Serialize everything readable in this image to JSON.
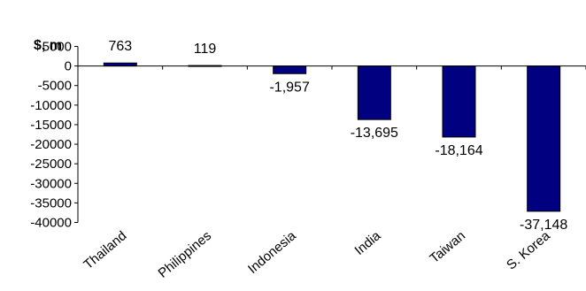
{
  "chart_data": {
    "type": "bar",
    "unit_label": "$, m",
    "categories": [
      "Thailand",
      "Philippines",
      "Indonesia",
      "India",
      "Taiwan",
      "S. Korea"
    ],
    "values": [
      763,
      119,
      -1957,
      -13695,
      -18164,
      -37148
    ],
    "data_labels": [
      "763",
      "119",
      "-1,957",
      "-13,695",
      "-18,164",
      "-37,148"
    ],
    "ylim": [
      -40000,
      5000
    ],
    "yticks": [
      5000,
      0,
      -5000,
      -10000,
      -15000,
      -20000,
      -25000,
      -30000,
      -35000,
      -40000
    ],
    "ytick_labels": [
      "5000",
      "0",
      "-5000",
      "-10000",
      "-15000",
      "-20000",
      "-25000",
      "-30000",
      "-35000",
      "-40000"
    ],
    "bar_color": "#000080",
    "grid": false,
    "legend": "none"
  }
}
